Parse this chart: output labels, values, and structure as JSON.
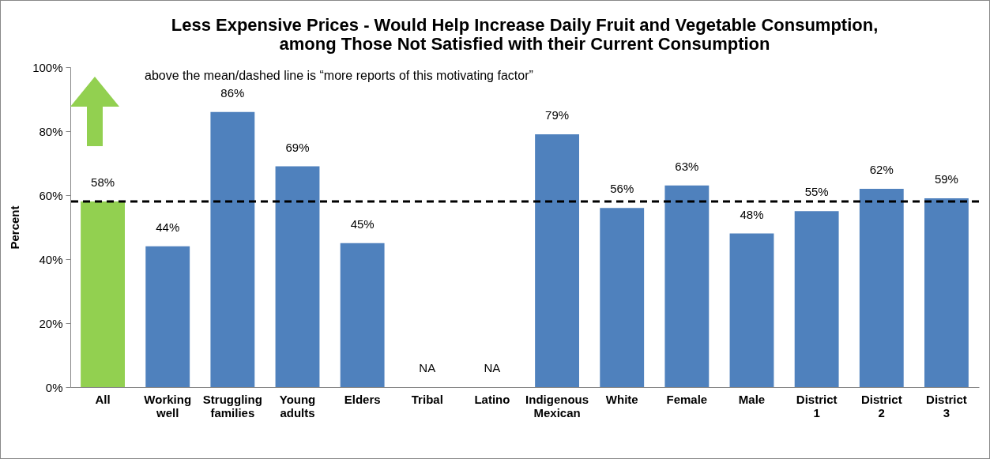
{
  "chart_data": {
    "type": "bar",
    "title": "Less Expensive Prices - Would Help Increase Daily Fruit and Vegetable Consumption, among Those Not Satisfied with their Current Consumption",
    "ylabel": "Percent",
    "categories": [
      "All",
      "Working well",
      "Struggling families",
      "Young adults",
      "Elders",
      "Tribal",
      "Latino",
      "Indigenous Mexican",
      "White",
      "Female",
      "Male",
      "District 1",
      "District 2",
      "District 3"
    ],
    "values": [
      58,
      44,
      86,
      69,
      45,
      null,
      null,
      79,
      56,
      63,
      48,
      55,
      62,
      59
    ],
    "colors": [
      "#92d050",
      "#4f81bd",
      "#4f81bd",
      "#4f81bd",
      "#4f81bd",
      "#4f81bd",
      "#4f81bd",
      "#4f81bd",
      "#4f81bd",
      "#4f81bd",
      "#4f81bd",
      "#4f81bd",
      "#4f81bd",
      "#4f81bd"
    ],
    "value_labels": [
      "58%",
      "44%",
      "86%",
      "69%",
      "45%",
      "NA",
      "NA",
      "79%",
      "56%",
      "63%",
      "48%",
      "55%",
      "62%",
      "59%"
    ],
    "ylim": [
      0,
      100
    ],
    "yticks": [
      {
        "value": 0,
        "label": "0%"
      },
      {
        "value": 20,
        "label": "20%"
      },
      {
        "value": 40,
        "label": "40%"
      },
      {
        "value": 60,
        "label": "60%"
      },
      {
        "value": 80,
        "label": "80%"
      },
      {
        "value": 100,
        "label": "100%"
      }
    ],
    "ref_lines": [
      {
        "axis": "y",
        "value": 58,
        "color": "#000000",
        "line_style": "dashed"
      }
    ],
    "annotations": [
      "above the mean/dashed line is “more reports of this motivating factor”"
    ],
    "grid": false
  }
}
